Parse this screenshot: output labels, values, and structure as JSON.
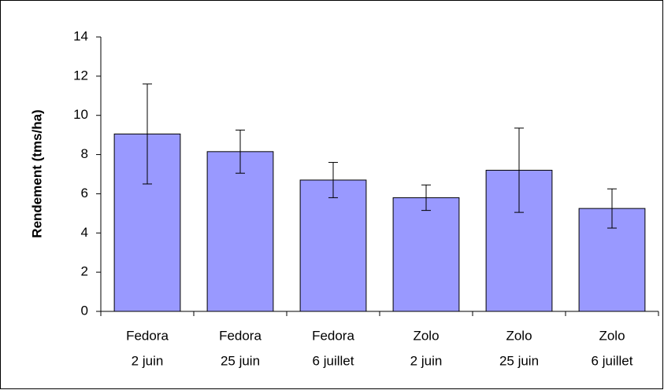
{
  "chart_data": {
    "type": "bar",
    "y_label": "Rendement (tms/ha)",
    "categories": [
      [
        "Fedora",
        "2 juin"
      ],
      [
        "Fedora",
        "25 juin"
      ],
      [
        "Fedora",
        "6 juillet"
      ],
      [
        "Zolo",
        "2 juin"
      ],
      [
        "Zolo",
        "25 juin"
      ],
      [
        "Zolo",
        "6 juillet"
      ]
    ],
    "values": [
      9.05,
      8.15,
      6.7,
      5.8,
      7.2,
      5.25
    ],
    "errors": [
      2.55,
      1.1,
      0.9,
      0.65,
      2.15,
      1.0
    ],
    "color": "#9999ff",
    "ylim": [
      0,
      14
    ],
    "yticks": [
      0,
      2,
      4,
      6,
      8,
      10,
      12,
      14
    ],
    "grid": false
  }
}
